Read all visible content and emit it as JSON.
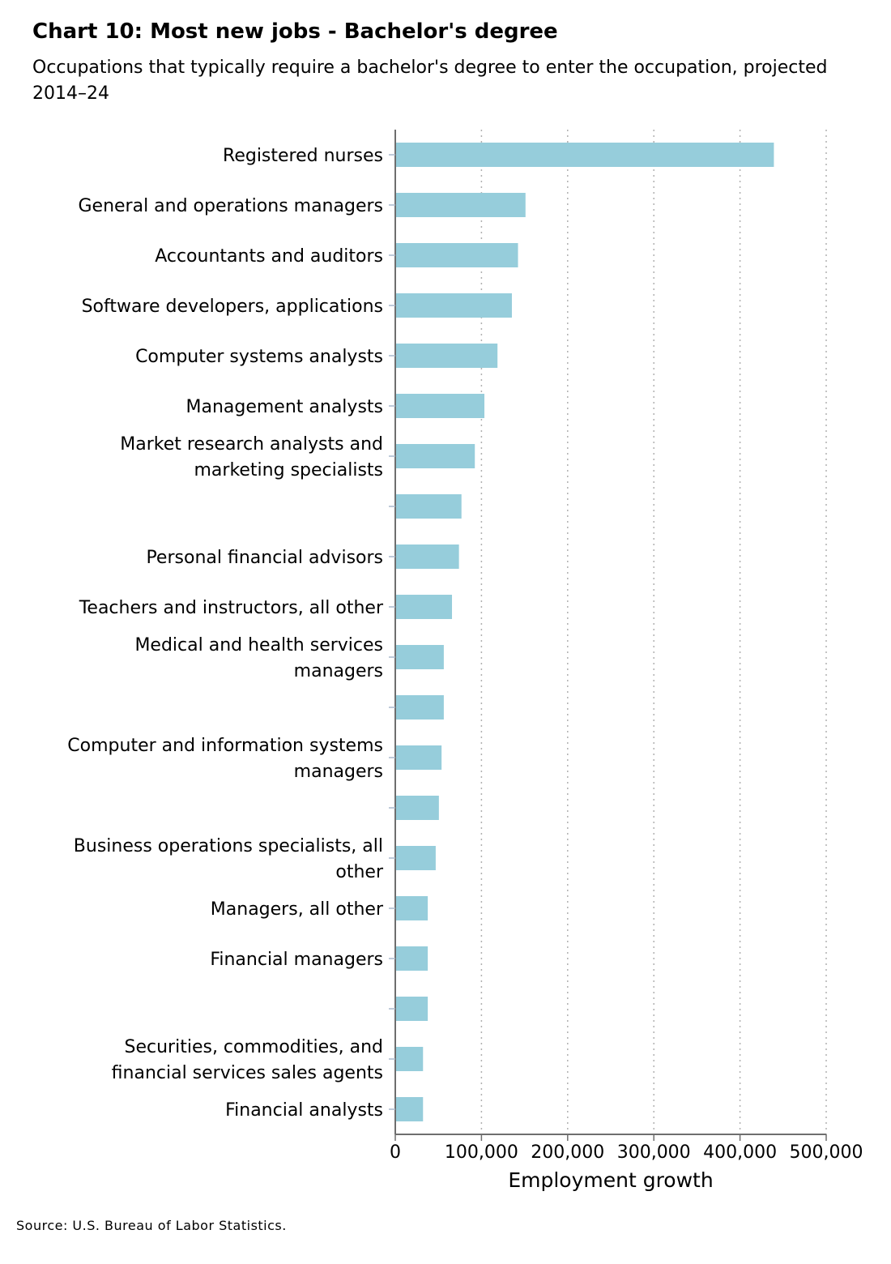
{
  "chart_data": {
    "type": "bar",
    "orientation": "horizontal",
    "title": "Chart 10: Most new jobs - Bachelor's degree",
    "subtitle": "Occupations that typically require a bachelor's degree to enter the occupation, projected 2014–24",
    "xlabel": "Employment growth",
    "ylabel": "",
    "xlim": [
      0,
      500000
    ],
    "x_ticks": [
      0,
      100000,
      200000,
      300000,
      400000,
      500000
    ],
    "x_tick_labels": [
      "0",
      "100,000",
      "200,000",
      "300,000",
      "400,000",
      "500,000"
    ],
    "grid": "vertical dotted",
    "legend": "none",
    "bar_color": "#96CDDB",
    "categories": [
      "Registered nurses",
      "General and operations managers",
      "Accountants and auditors",
      "Software developers, applications",
      "Computer systems analysts",
      "Management analysts",
      "Market research analysts and marketing specialists",
      "",
      "Personal financial advisors",
      "Teachers and instructors, all other",
      "Medical and health services managers",
      "",
      "Computer and information systems managers",
      "",
      "Business operations specialists, all other",
      "Managers, all other",
      "Financial managers",
      "",
      "Securities, commodities, and financial services sales agents",
      "Financial analysts"
    ],
    "category_lines": [
      [
        "Registered nurses"
      ],
      [
        "General and operations managers"
      ],
      [
        "Accountants and auditors"
      ],
      [
        "Software developers, applications"
      ],
      [
        "Computer systems analysts"
      ],
      [
        "Management analysts"
      ],
      [
        "Market research analysts and",
        "marketing specialists"
      ],
      [],
      [
        "Personal financial advisors"
      ],
      [
        "Teachers and instructors, all other"
      ],
      [
        "Medical and health services",
        "managers"
      ],
      [],
      [
        "Computer and information systems",
        "managers"
      ],
      [],
      [
        "Business operations specialists, all",
        "other"
      ],
      [
        "Managers, all other"
      ],
      [
        "Financial managers"
      ],
      [],
      [
        "Securities, commodities, and",
        "financial services sales agents"
      ],
      [
        "Financial analysts"
      ]
    ],
    "values": [
      439300,
      151100,
      142400,
      135300,
      118600,
      103400,
      92300,
      76800,
      73900,
      65800,
      56300,
      56300,
      53700,
      50600,
      46900,
      37700,
      37700,
      37700,
      32200,
      32200
    ]
  },
  "source": "Source: U.S. Bureau of Labor Statistics."
}
